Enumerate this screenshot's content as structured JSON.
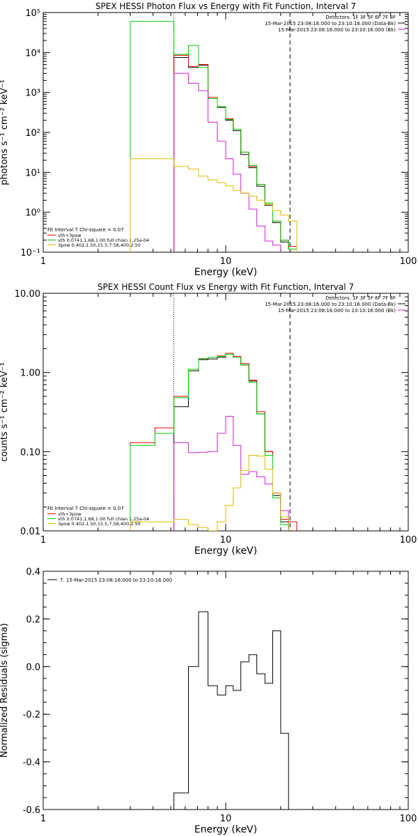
{
  "colors": {
    "background": "#ffffff",
    "axes": "#000000",
    "total": "#000000",
    "fit_total": "#e00000",
    "thermal": "#00cc00",
    "power_law": "#cc22cc",
    "background_model": "#ddbb00"
  },
  "chart_data": [
    {
      "type": "line",
      "title": "SPEX HESSI Photon Flux vs Energy with Fit Function, Interval 7",
      "xlabel": "Energy (keV)",
      "ylabel": "photons s⁻¹ cm⁻² keV⁻¹",
      "xscale": "log",
      "yscale": "log",
      "xlim": [
        1,
        100
      ],
      "ylim": [
        0.1,
        100000
      ],
      "x_ticks": [
        1,
        10,
        100
      ],
      "x_tick_labels": [
        "1",
        "10",
        "100"
      ],
      "y_ticks": [
        0.1,
        1,
        10,
        100,
        1000,
        10000,
        100000
      ],
      "y_tick_labels": [
        "10⁻¹",
        "10⁰",
        "10¹",
        "10²",
        "10³",
        "10⁴",
        "10⁵"
      ],
      "header_lines": [
        "Detectors: 1F 3F 5F 6F 7F 8F",
        "15-Mar-2015 23:08:16.000 to 23:10:16.000 (Data-Bk)",
        "15-Mar-2015 23:08:16.000 to 23:10:16.000 (Bk)"
      ],
      "header_colors": [
        "",
        "#000000",
        "#cc22cc"
      ],
      "legend_title": "Fit Interval 7   Chi-square = 0.07",
      "legend_entries": [
        {
          "label": "vth+3pow",
          "color": "#e00000"
        },
        {
          "label": "vth 0.0741,1.68,1.00  full chian 1.25e-04",
          "color": "#00cc00"
        },
        {
          "label": "3pow 0.402,1.50,15.5,7.58,400,2.50",
          "color": "#ddbb00"
        }
      ],
      "markers": [
        {
          "x": 5.2,
          "style": "dotted"
        },
        {
          "x": 22.5,
          "style": "dashed"
        }
      ],
      "bin_edges": [
        3.0,
        4.1,
        5.2,
        6.25,
        7.1,
        8.0,
        9.0,
        10.0,
        11.0,
        12.1,
        13.4,
        14.8,
        16.4,
        18.1,
        20.0,
        22.1,
        24.5
      ],
      "series": [
        {
          "name": "",
          "color": "#000000",
          "values": [
            null,
            null,
            7500,
            4200,
            4800,
            700,
            420,
            200,
            110,
            28,
            13,
            4.5,
            1.5,
            0.55,
            0.18,
            0.12
          ]
        },
        {
          "name": "",
          "color": "#e00000",
          "values": [
            null,
            null,
            8500,
            4500,
            5000,
            750,
            440,
            220,
            120,
            32,
            14,
            5.0,
            1.7,
            0.6,
            0.2,
            0.14
          ]
        },
        {
          "name": "",
          "color": "#00cc00",
          "values": [
            60000,
            60000,
            9000,
            15000,
            4200,
            700,
            440,
            210,
            120,
            32,
            15,
            5.0,
            1.7,
            0.6,
            0.2,
            0.12
          ]
        },
        {
          "name": "",
          "color": "#cc22cc",
          "values": [
            null,
            null,
            3000,
            1700,
            1100,
            180,
            60,
            22,
            9,
            3,
            1.2,
            0.45,
            0.19,
            0.15,
            null,
            null
          ]
        },
        {
          "name": "",
          "color": "#ddbb00",
          "values": [
            22,
            22,
            14,
            12,
            8,
            6.5,
            5.5,
            4.6,
            3.5,
            3.0,
            2.5,
            2.0,
            1.6,
            1.1,
            0.85,
            0.6
          ]
        }
      ]
    },
    {
      "type": "line",
      "title": "SPEX HESSI Count Flux vs Energy with Fit Function, Interval 7",
      "xlabel": "Energy (keV)",
      "ylabel": "counts s⁻¹ cm⁻² keV⁻¹",
      "xscale": "log",
      "yscale": "log",
      "xlim": [
        1,
        100
      ],
      "ylim": [
        0.01,
        10
      ],
      "x_ticks": [
        1,
        10,
        100
      ],
      "x_tick_labels": [
        "1",
        "10",
        "100"
      ],
      "y_ticks": [
        0.01,
        0.1,
        1,
        10
      ],
      "y_tick_labels": [
        "0.01",
        "0.10",
        "1.00",
        "10.00"
      ],
      "header_lines": [
        "Detectors: 1F 3F 5F 6F 7F 8F",
        "15-Mar-2015 23:08:16.000 to 23:10:16.000 (Data-Bk)",
        "15-Mar-2015 23:08:16.000 to 23:10:16.000 (Bk)"
      ],
      "header_colors": [
        "",
        "#000000",
        "#cc22cc"
      ],
      "legend_title": "Fit Interval 7   Chi-square = 0.07",
      "legend_entries": [
        {
          "label": "vth+3pow",
          "color": "#e00000"
        },
        {
          "label": "vth 0.0741,1.68,1.00  full chian 1.25e-04",
          "color": "#00cc00"
        },
        {
          "label": "3pow 0.402,1.50,15.5,7.58,400,2.50",
          "color": "#ddbb00"
        }
      ],
      "markers": [
        {
          "x": 5.2,
          "style": "dotted"
        },
        {
          "x": 22.5,
          "style": "dashed"
        }
      ],
      "bin_edges": [
        3.0,
        4.1,
        5.2,
        6.25,
        7.1,
        8.0,
        9.0,
        10.0,
        11.0,
        12.1,
        13.4,
        14.8,
        16.4,
        18.1,
        20.0,
        22.1,
        24.5
      ],
      "series": [
        {
          "name": "",
          "color": "#000000",
          "values": [
            null,
            null,
            0.37,
            1.05,
            1.45,
            1.48,
            1.55,
            1.7,
            1.55,
            1.25,
            0.78,
            0.3,
            0.1,
            0.028,
            0.013,
            null
          ]
        },
        {
          "name": "",
          "color": "#e00000",
          "values": [
            0.13,
            0.2,
            0.5,
            1.1,
            1.5,
            1.55,
            1.62,
            1.75,
            1.6,
            1.3,
            0.8,
            0.32,
            0.1,
            0.03,
            0.014,
            0.013
          ]
        },
        {
          "name": "",
          "color": "#00cc00",
          "values": [
            0.12,
            0.17,
            0.48,
            1.1,
            1.5,
            1.55,
            1.6,
            1.7,
            1.55,
            1.25,
            0.75,
            0.3,
            0.09,
            0.026,
            0.012,
            null
          ]
        },
        {
          "name": "",
          "color": "#cc22cc",
          "values": [
            null,
            null,
            0.13,
            0.097,
            0.098,
            0.1,
            0.17,
            0.28,
            0.12,
            0.052,
            0.056,
            0.048,
            0.039,
            0.03,
            0.018,
            null
          ]
        },
        {
          "name": "",
          "color": "#ddbb00",
          "values": [
            0.013,
            0.013,
            0.014,
            0.012,
            0.011,
            0.01,
            0.013,
            0.021,
            0.035,
            0.058,
            0.09,
            0.088,
            0.06,
            0.03,
            0.015,
            null
          ]
        }
      ]
    },
    {
      "type": "line",
      "title": "",
      "xlabel": "Energy (keV)",
      "ylabel": "Normalized Residuals (sigma)",
      "xscale": "log",
      "yscale": "linear",
      "xlim": [
        1,
        100
      ],
      "ylim": [
        -0.6,
        0.4
      ],
      "x_ticks": [
        1,
        10,
        100
      ],
      "x_tick_labels": [
        "1",
        "10",
        "100"
      ],
      "y_ticks": [
        -0.6,
        -0.4,
        -0.2,
        0.0,
        0.2,
        0.4
      ],
      "y_tick_labels": [
        "-0.6",
        "-0.4",
        "-0.2",
        "0.0",
        "0.2",
        "0.4"
      ],
      "header_lines": [],
      "header_colors": [],
      "legend_title": "",
      "legend_entries": [
        {
          "label": "7. 15-Mar-2015 23:08:16.000 to 23:10:16.000",
          "color": "#000000"
        }
      ],
      "markers": [],
      "bin_edges": [
        5.2,
        6.25,
        7.1,
        8.0,
        9.0,
        10.0,
        11.0,
        12.1,
        13.4,
        14.8,
        16.4,
        18.1,
        20.0,
        22.1
      ],
      "series": [
        {
          "name": "",
          "color": "#000000",
          "values": [
            -0.53,
            0.0,
            0.23,
            -0.08,
            -0.12,
            -0.08,
            -0.1,
            0.02,
            0.05,
            -0.03,
            -0.07,
            0.15,
            -0.28
          ]
        }
      ]
    }
  ]
}
